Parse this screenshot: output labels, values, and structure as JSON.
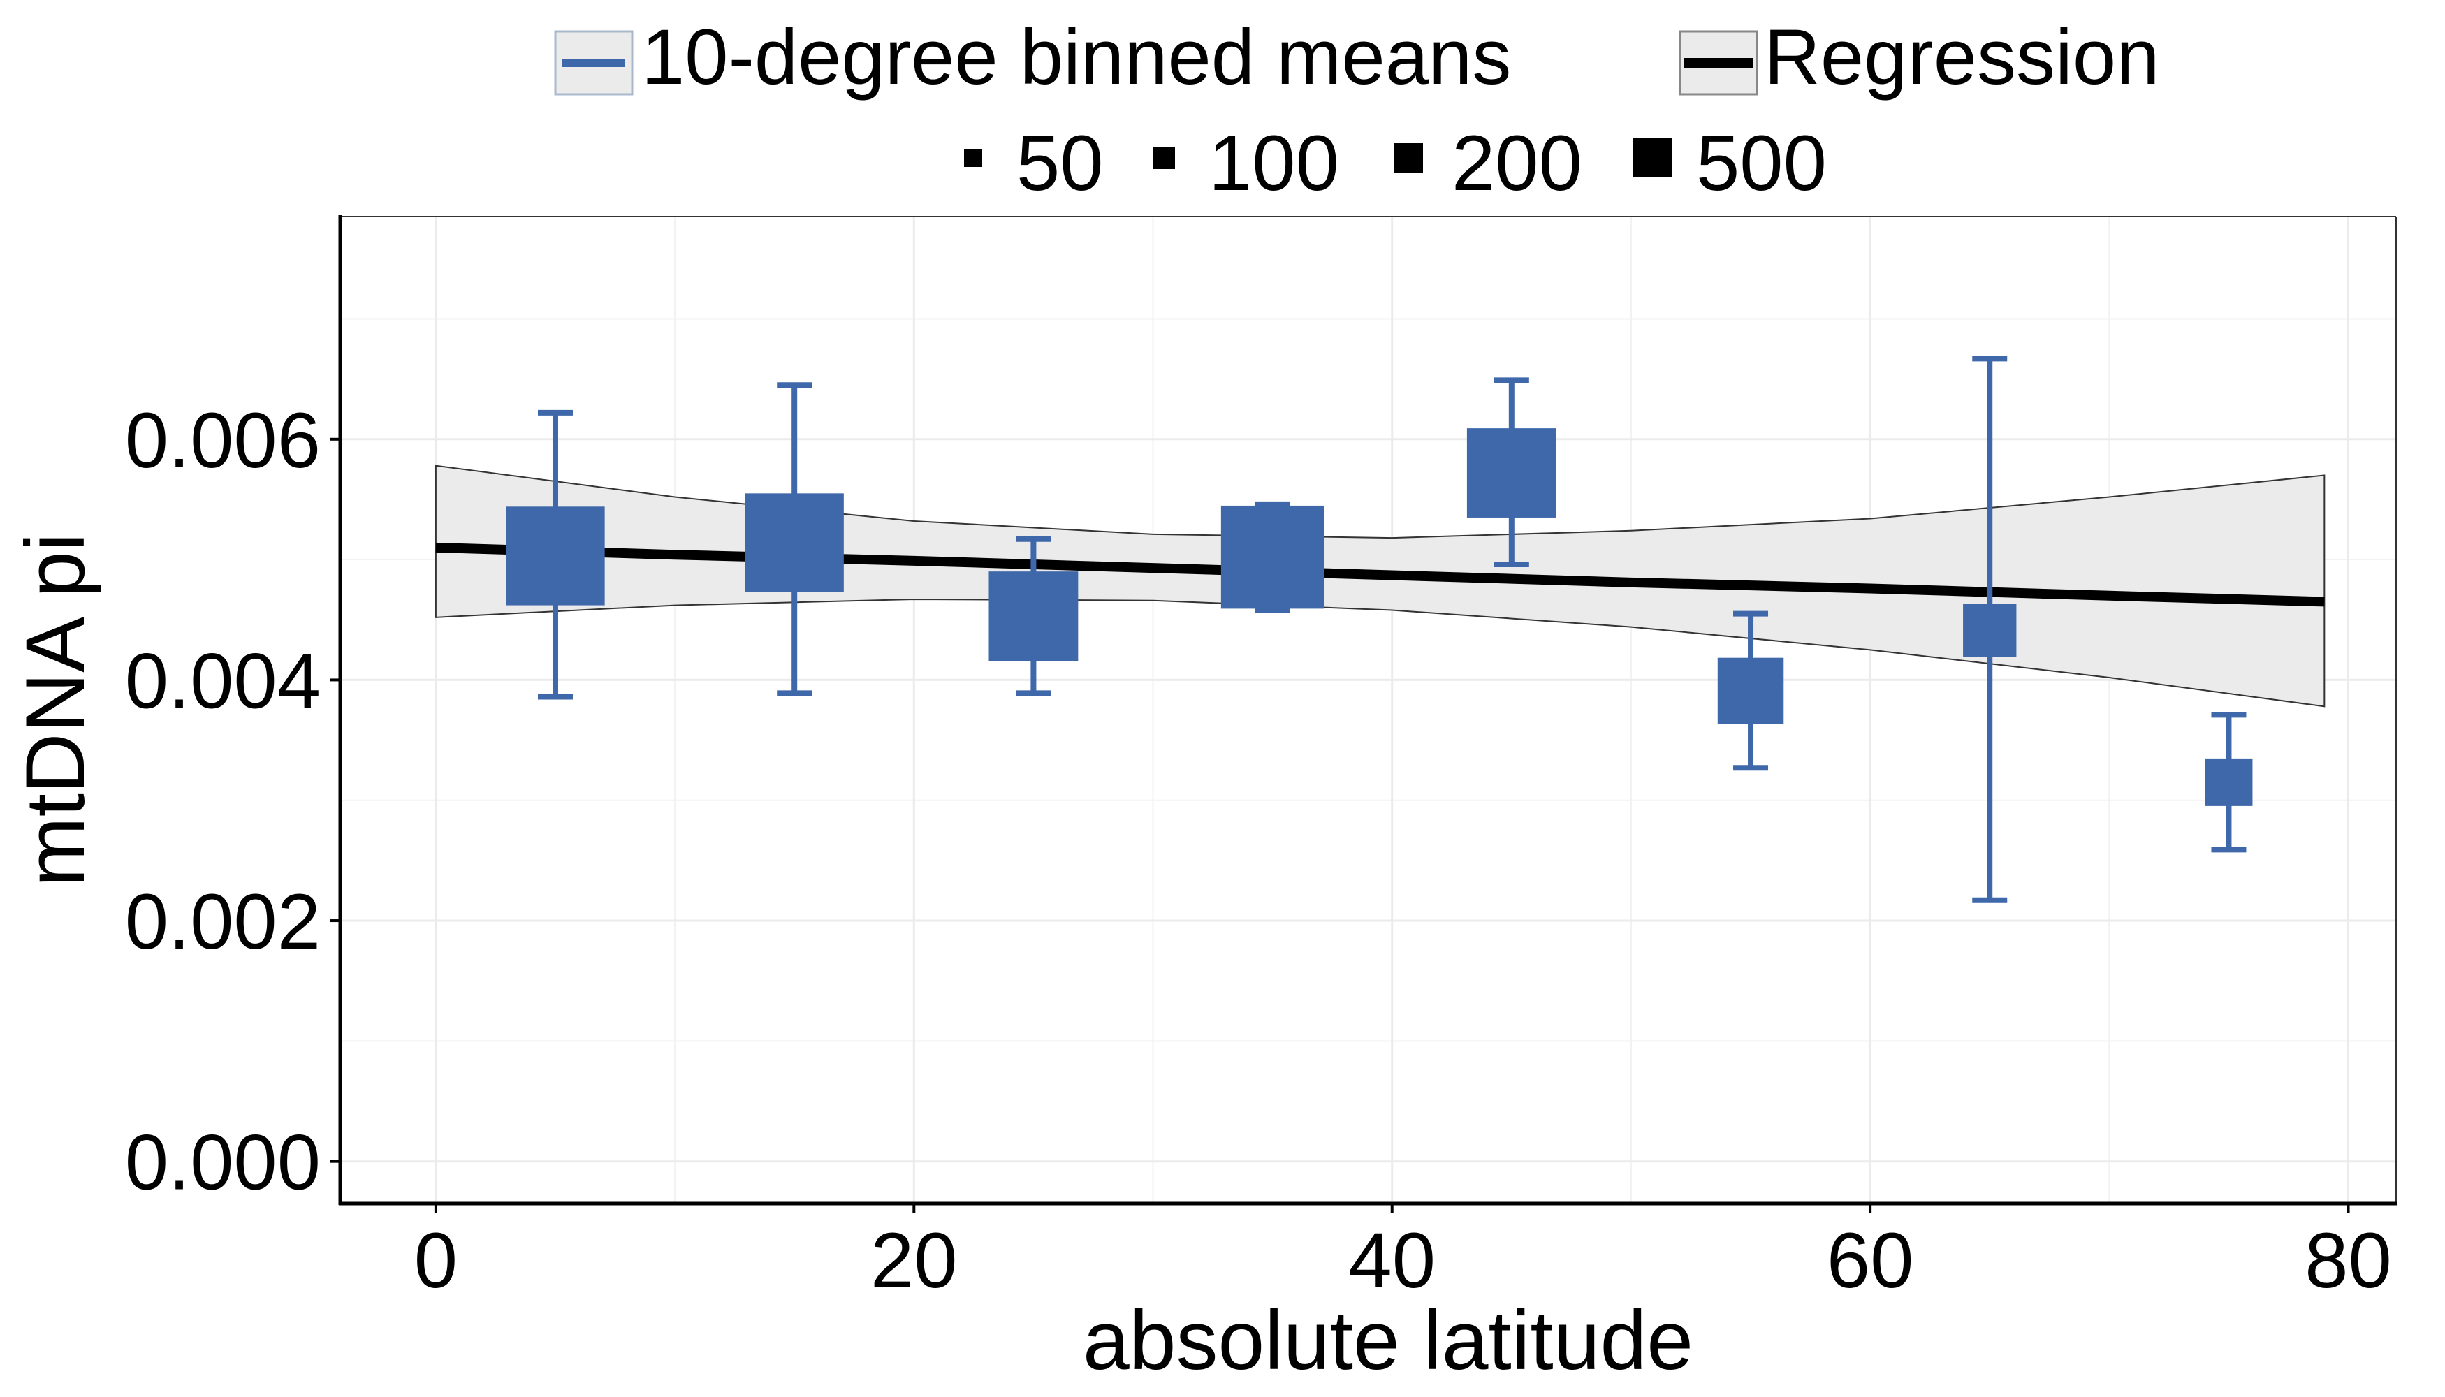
{
  "chart_data": {
    "type": "scatter",
    "xlabel": "absolute latitude",
    "ylabel": "mtDNA pi",
    "xlim": [
      -4,
      82
    ],
    "ylim": [
      -0.00035,
      0.00785
    ],
    "x_ticks": [
      {
        "value": 0,
        "label": "0"
      },
      {
        "value": 20,
        "label": "20"
      },
      {
        "value": 40,
        "label": "40"
      },
      {
        "value": 60,
        "label": "60"
      },
      {
        "value": 80,
        "label": "80"
      }
    ],
    "y_ticks": [
      {
        "value": 0.0,
        "label": "0.000"
      },
      {
        "value": 0.002,
        "label": "0.002"
      },
      {
        "value": 0.004,
        "label": "0.004"
      },
      {
        "value": 0.006,
        "label": "0.006"
      }
    ],
    "grid": true,
    "legend_position": "top",
    "legend": {
      "series_entries": [
        {
          "label": "10-degree binned means"
        },
        {
          "label": "Regression"
        }
      ],
      "size_entries": [
        {
          "label": "50",
          "n": 50
        },
        {
          "label": "100",
          "n": 100
        },
        {
          "label": "200",
          "n": 200
        },
        {
          "label": "500",
          "n": 500
        }
      ]
    },
    "series": [
      {
        "name": "10-degree binned means",
        "type": "point-errorbar",
        "color": "#3f68aa",
        "points": [
          {
            "x": 5,
            "y": 0.00503,
            "ymin": 0.00386,
            "ymax": 0.00622,
            "n": 500
          },
          {
            "x": 15,
            "y": 0.00514,
            "ymin": 0.00389,
            "ymax": 0.00645,
            "n": 500
          },
          {
            "x": 25,
            "y": 0.00453,
            "ymin": 0.00389,
            "ymax": 0.00517,
            "n": 400
          },
          {
            "x": 35,
            "y": 0.00502,
            "ymin": 0.00458,
            "ymax": 0.00546,
            "n": 550
          },
          {
            "x": 45,
            "y": 0.00572,
            "ymin": 0.00496,
            "ymax": 0.00649,
            "n": 400
          },
          {
            "x": 55,
            "y": 0.00391,
            "ymin": 0.00327,
            "ymax": 0.00455,
            "n": 200
          },
          {
            "x": 65,
            "y": 0.00441,
            "ymin": 0.00217,
            "ymax": 0.00667,
            "n": 120
          },
          {
            "x": 75,
            "y": 0.00315,
            "ymin": 0.00259,
            "ymax": 0.00371,
            "n": 90
          }
        ]
      },
      {
        "name": "Regression",
        "type": "line-ribbon",
        "color": "#000000",
        "ribbon_color": "#ebebeb",
        "x": [
          0,
          10,
          20,
          30,
          40,
          50,
          60,
          70,
          79
        ],
        "y": [
          0.0051,
          0.00504,
          0.00499,
          0.00493,
          0.00487,
          0.00481,
          0.00476,
          0.0047,
          0.00465
        ],
        "lower": [
          0.00452,
          0.00462,
          0.00467,
          0.00466,
          0.00458,
          0.00444,
          0.00425,
          0.00402,
          0.00378
        ],
        "upper": [
          0.00578,
          0.00552,
          0.00532,
          0.00521,
          0.00518,
          0.00524,
          0.00534,
          0.00552,
          0.0057
        ]
      }
    ]
  }
}
